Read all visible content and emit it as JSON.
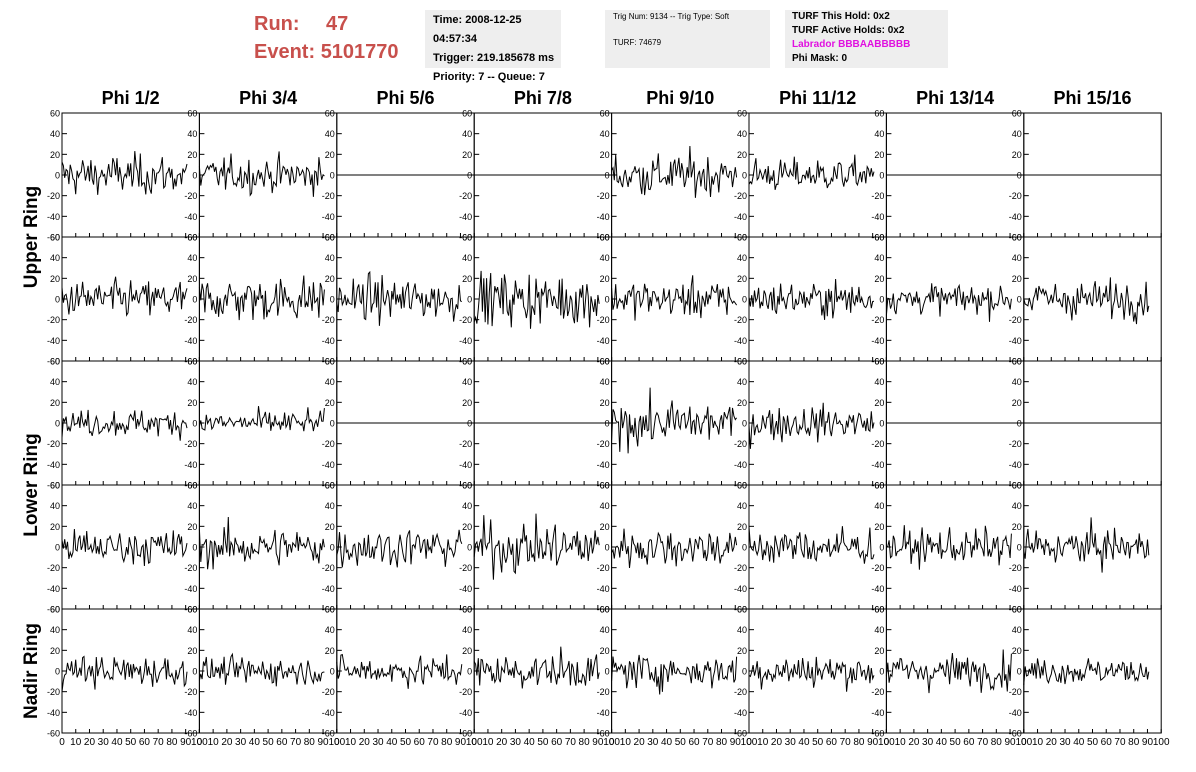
{
  "run": {
    "label": "Run:",
    "value": "47"
  },
  "event": {
    "label": "Event:",
    "value": "5101770"
  },
  "info": {
    "time": "Time: 2008-12-25 04:57:34",
    "trigger": "Trigger: 219.185678 ms",
    "priority": "Priority: 7 -- Queue: 7"
  },
  "trig": {
    "trig_line": "Trig Num: 9134 -- Trig Type: Soft",
    "turf": "TURF: 74679"
  },
  "turf": {
    "this_hold": "TURF This Hold: 0x2",
    "active_holds": "TURF Active Holds: 0x2",
    "labrador": "Labrador BBBAABBBBB",
    "phi_mask": "Phi Mask: 0"
  },
  "colors": {
    "title_red": "#c8504c",
    "labrador_magenta": "#e010e0",
    "panel_bg": "#eeeeee",
    "trace": "#000000"
  },
  "chart_data": {
    "type": "line",
    "columns": [
      "Phi 1/2",
      "Phi 3/4",
      "Phi 5/6",
      "Phi 7/8",
      "Phi 9/10",
      "Phi 11/12",
      "Phi 13/14",
      "Phi 15/16"
    ],
    "ring_labels": [
      "Upper Ring",
      "Lower Ring",
      "Nadir Ring"
    ],
    "ylim": [
      -60,
      60
    ],
    "yticks": [
      -60,
      -40,
      -20,
      0,
      20,
      40,
      60
    ],
    "xlim": [
      0,
      100
    ],
    "xticks": [
      0,
      10,
      20,
      30,
      40,
      50,
      60,
      70,
      80,
      90,
      100
    ],
    "samples": 92,
    "rows": [
      {
        "ring": "Upper Ring",
        "active": [
          true,
          true,
          false,
          false,
          true,
          true,
          false,
          false
        ],
        "amplitude": [
          15,
          13,
          0,
          0,
          16,
          12,
          0,
          0
        ]
      },
      {
        "ring": "Upper Ring",
        "active": [
          true,
          true,
          true,
          true,
          true,
          true,
          true,
          true
        ],
        "amplitude": [
          14,
          17,
          16,
          20,
          14,
          13,
          11,
          14
        ]
      },
      {
        "ring": "Lower Ring",
        "active": [
          true,
          true,
          false,
          false,
          true,
          true,
          false,
          false
        ],
        "amplitude": [
          10,
          9,
          0,
          0,
          17,
          13,
          0,
          0
        ]
      },
      {
        "ring": "Lower Ring",
        "active": [
          true,
          true,
          true,
          true,
          true,
          true,
          true,
          true
        ],
        "amplitude": [
          13,
          15,
          15,
          19,
          15,
          14,
          13,
          14
        ]
      },
      {
        "ring": "Nadir Ring",
        "active": [
          true,
          true,
          true,
          true,
          true,
          true,
          true,
          true
        ],
        "amplitude": [
          12,
          10,
          11,
          13,
          13,
          12,
          13,
          10
        ]
      }
    ]
  }
}
